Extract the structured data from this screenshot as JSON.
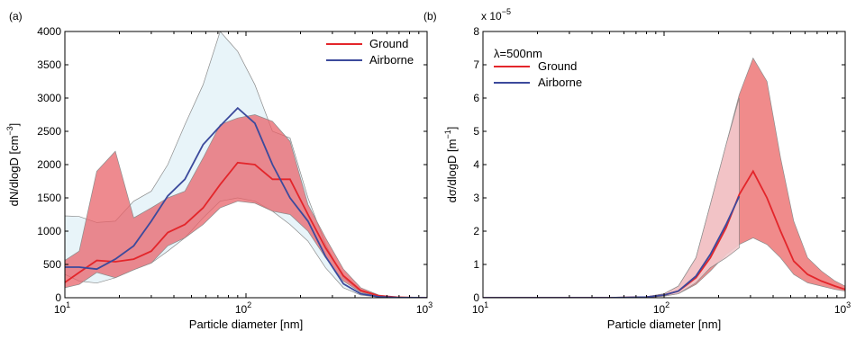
{
  "chart_data": [
    {
      "panel_label": "(a)",
      "type": "line",
      "xscale": "log",
      "xlabel": "Particle diameter [nm]",
      "ylabel_main": "dN/dlogD [cm",
      "ylabel_sup": "−3",
      "ylabel_end": "]",
      "xlim": [
        10,
        1000
      ],
      "ylim": [
        0,
        4000
      ],
      "xticks": [
        {
          "v": 10,
          "base": "10",
          "exp": "1"
        },
        {
          "v": 100,
          "base": "10",
          "exp": "2"
        },
        {
          "v": 1000,
          "base": "10",
          "exp": "3"
        }
      ],
      "yticks": [
        0,
        500,
        1000,
        1500,
        2000,
        2500,
        3000,
        3500,
        4000
      ],
      "legend_position": "top-right",
      "series": [
        {
          "name": "Ground",
          "color": "#e3262b",
          "band_color": "#e8636a",
          "x": [
            10,
            12,
            15,
            19,
            24,
            30,
            37,
            46,
            58,
            72,
            90,
            112,
            140,
            175,
            220,
            275,
            345,
            430,
            540,
            680,
            850,
            1000
          ],
          "y": [
            230,
            380,
            560,
            540,
            580,
            700,
            980,
            1100,
            1350,
            1700,
            2030,
            2000,
            1780,
            1780,
            1250,
            750,
            330,
            110,
            30,
            8,
            2,
            0
          ],
          "upper": [
            560,
            700,
            1900,
            2200,
            1200,
            1350,
            1500,
            1600,
            2100,
            2600,
            2700,
            2750,
            2650,
            2350,
            1400,
            900,
            430,
            150,
            40,
            10,
            3,
            0
          ],
          "lower": [
            150,
            200,
            380,
            300,
            420,
            520,
            780,
            900,
            1100,
            1350,
            1450,
            1420,
            1300,
            1250,
            1000,
            600,
            250,
            80,
            20,
            5,
            1,
            0
          ]
        },
        {
          "name": "Airborne",
          "color": "#3c4a9c",
          "band_color": "#e6f3f8",
          "x": [
            10,
            12,
            15,
            19,
            24,
            30,
            37,
            46,
            58,
            72,
            90,
            112,
            140,
            175,
            220,
            275,
            345,
            430,
            540,
            680,
            850,
            1000
          ],
          "y": [
            460,
            460,
            430,
            580,
            780,
            1150,
            1530,
            1780,
            2300,
            2580,
            2850,
            2620,
            2000,
            1500,
            1150,
            620,
            210,
            60,
            15,
            3,
            1,
            0
          ],
          "upper": [
            1230,
            1220,
            1130,
            1150,
            1450,
            1600,
            2000,
            2600,
            3200,
            4000,
            3700,
            3200,
            2500,
            2400,
            1500,
            800,
            300,
            90,
            20,
            5,
            1,
            0
          ],
          "lower": [
            350,
            250,
            220,
            300,
            420,
            520,
            700,
            900,
            1200,
            1450,
            1500,
            1450,
            1300,
            1100,
            850,
            450,
            150,
            40,
            10,
            2,
            0,
            0
          ]
        }
      ]
    },
    {
      "panel_label": "(b)",
      "type": "line",
      "xscale": "log",
      "xlabel": "Particle diameter [nm]",
      "ylabel_main": "dσ/dlogD [m",
      "ylabel_sup": "−1",
      "ylabel_end": "]",
      "scale_note_base": "x 10",
      "scale_note_exp": "−5",
      "annotation": "λ=500nm",
      "xlim": [
        10,
        1000
      ],
      "ylim": [
        0,
        8
      ],
      "xticks": [
        {
          "v": 10,
          "base": "10",
          "exp": "1"
        },
        {
          "v": 100,
          "base": "10",
          "exp": "2"
        },
        {
          "v": 1000,
          "base": "10",
          "exp": "3"
        }
      ],
      "yticks": [
        0,
        1,
        2,
        3,
        4,
        5,
        6,
        7,
        8
      ],
      "legend_position": "top-left",
      "series": [
        {
          "name": "Ground",
          "color": "#e3262b",
          "band_color": "#ee7e7e",
          "x": [
            10,
            50,
            80,
            100,
            120,
            150,
            180,
            220,
            260,
            310,
            370,
            440,
            520,
            620,
            740,
            880,
            1000
          ],
          "y": [
            0,
            0,
            0.02,
            0.08,
            0.2,
            0.6,
            1.2,
            2.1,
            3.1,
            3.8,
            3.0,
            2.0,
            1.1,
            0.7,
            0.5,
            0.35,
            0.25
          ],
          "upper": [
            0,
            0,
            0.03,
            0.12,
            0.35,
            1.2,
            2.8,
            4.6,
            6.1,
            7.2,
            6.5,
            4.2,
            2.3,
            1.2,
            0.8,
            0.5,
            0.35
          ],
          "lower": [
            0,
            0,
            0.01,
            0.05,
            0.12,
            0.4,
            0.8,
            1.3,
            1.6,
            1.8,
            1.6,
            1.2,
            0.7,
            0.45,
            0.35,
            0.25,
            0.2
          ]
        },
        {
          "name": "Airborne",
          "color": "#3c4a9c",
          "band_color": "#f2c9cc",
          "x": [
            10,
            50,
            80,
            100,
            120,
            150,
            180,
            220,
            260
          ],
          "y": [
            0,
            0,
            0.02,
            0.08,
            0.2,
            0.65,
            1.3,
            2.2,
            3.05
          ],
          "upper": [
            0,
            0,
            0.03,
            0.12,
            0.35,
            1.2,
            2.8,
            4.6,
            6.0
          ],
          "lower": [
            0,
            0,
            0.01,
            0.05,
            0.12,
            0.45,
            0.9,
            1.2,
            1.5
          ]
        }
      ]
    }
  ]
}
